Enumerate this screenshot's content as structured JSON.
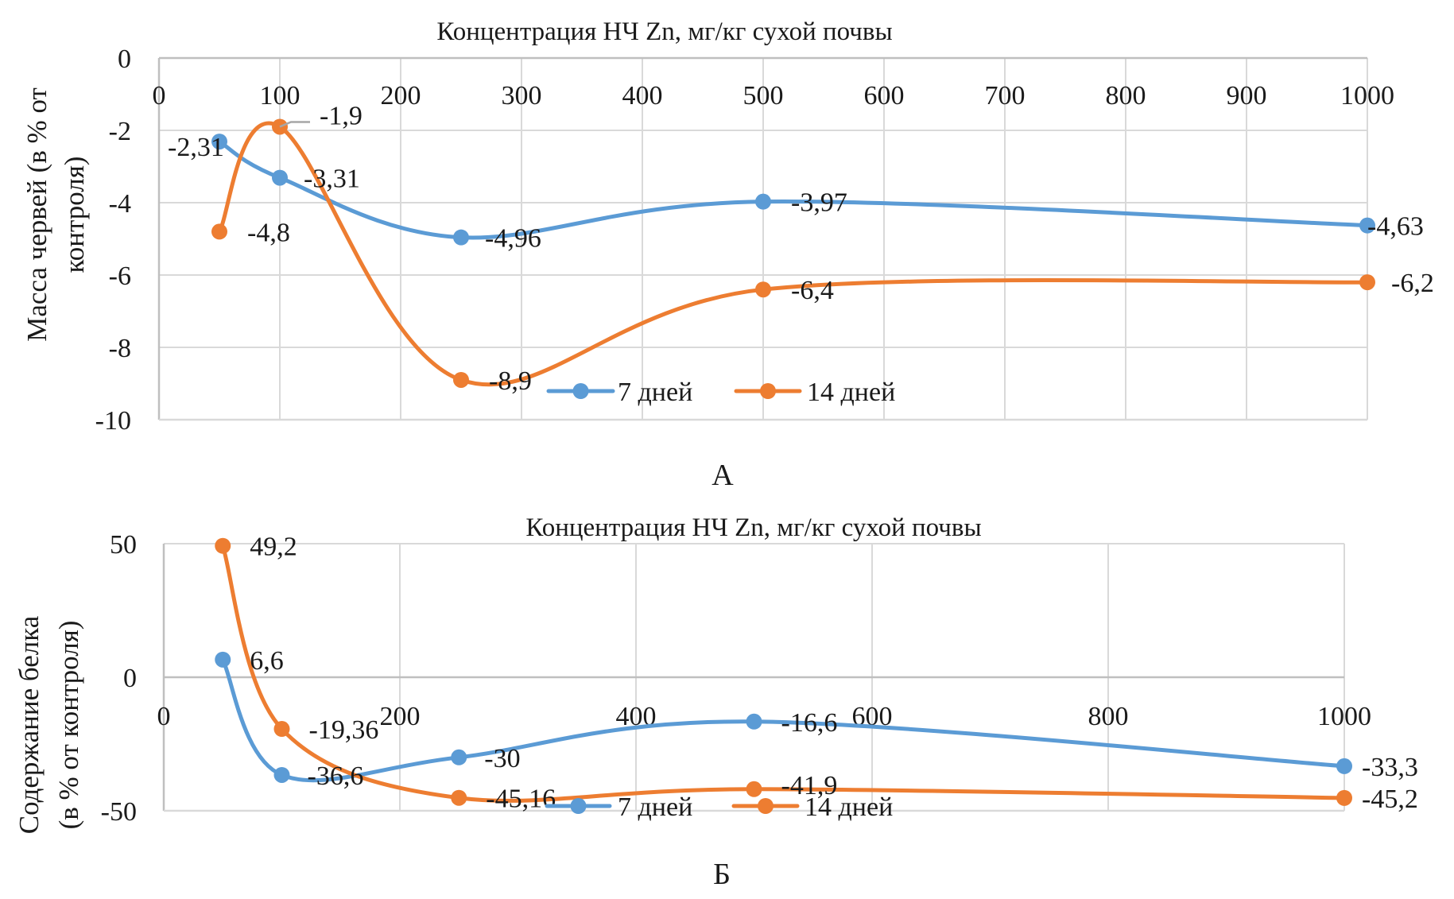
{
  "colors": {
    "series_7": "#5B9BD5",
    "series_14": "#ED7D31",
    "grid": "#D9D9D9",
    "axis": "#BFBFBF",
    "leader": "#A6A6A6"
  },
  "chart_data": [
    {
      "id": "A",
      "type": "line",
      "panel_label": "А",
      "title": "Концентрация НЧ Zn, мг/кг сухой почвы",
      "xlabel": "Концентрация НЧ Zn, мг/кг сухой почвы",
      "ylabel_lines": [
        "Масса червей (в % от",
        "контроля)"
      ],
      "xlim": [
        0,
        1000
      ],
      "ylim": [
        -10,
        0
      ],
      "x_ticks": [
        "0",
        "100",
        "200",
        "300",
        "400",
        "500",
        "600",
        "700",
        "800",
        "900",
        "1000"
      ],
      "x_tick_values": [
        0,
        100,
        200,
        300,
        400,
        500,
        600,
        700,
        800,
        900,
        1000
      ],
      "y_ticks": [
        "0",
        "-2",
        "-4",
        "-6",
        "-8",
        "-10"
      ],
      "y_tick_values": [
        0,
        -2,
        -4,
        -6,
        -8,
        -10
      ],
      "grid": true,
      "smoothed": true,
      "legend_position": "bottom-center-inside",
      "series": [
        {
          "name": "7 дней",
          "color": "#5B9BD5",
          "x": [
            50,
            100,
            250,
            500,
            1000
          ],
          "values": [
            -2.31,
            -3.31,
            -4.96,
            -3.97,
            -4.63
          ],
          "labels": [
            "-2,31",
            "-3,31",
            "-4,96",
            "-3,97",
            "-4,63"
          ]
        },
        {
          "name": "14 дней",
          "color": "#ED7D31",
          "x": [
            50,
            100,
            250,
            500,
            1000
          ],
          "values": [
            -4.8,
            -1.9,
            -8.9,
            -6.4,
            -6.2
          ],
          "labels": [
            "-4,8",
            "-1,9",
            "-8,9",
            "-6,4",
            "-6,2"
          ]
        }
      ]
    },
    {
      "id": "B",
      "type": "line",
      "panel_label": "Б",
      "title": "Концентрация НЧ Zn, мг/кг сухой почвы",
      "xlabel": "Концентрация НЧ Zn, мг/кг сухой почвы",
      "ylabel_lines": [
        "Содержание белка",
        "(в % от контроля)"
      ],
      "xlim": [
        0,
        1000
      ],
      "ylim": [
        -50,
        50
      ],
      "x_ticks": [
        "0",
        "200",
        "400",
        "600",
        "800",
        "1000"
      ],
      "x_tick_values": [
        0,
        200,
        400,
        600,
        800,
        1000
      ],
      "y_ticks": [
        "50",
        "0",
        "-50"
      ],
      "y_tick_values": [
        50,
        0,
        -50
      ],
      "grid": true,
      "smoothed": true,
      "legend_position": "bottom-center-inside",
      "series": [
        {
          "name": "7 дней",
          "color": "#5B9BD5",
          "x": [
            50,
            100,
            250,
            500,
            1000
          ],
          "values": [
            6.6,
            -36.6,
            -30,
            -16.6,
            -33.3
          ],
          "labels": [
            "6,6",
            "-36,6",
            "-30",
            "-16,6",
            "-33,3"
          ]
        },
        {
          "name": "14 дней",
          "color": "#ED7D31",
          "x": [
            50,
            100,
            250,
            500,
            1000
          ],
          "values": [
            49.2,
            -19.36,
            -45.16,
            -41.9,
            -45.2
          ],
          "labels": [
            "49,2",
            "-19,36",
            "-45,16",
            "-41,9",
            "-45,2"
          ]
        }
      ]
    }
  ]
}
